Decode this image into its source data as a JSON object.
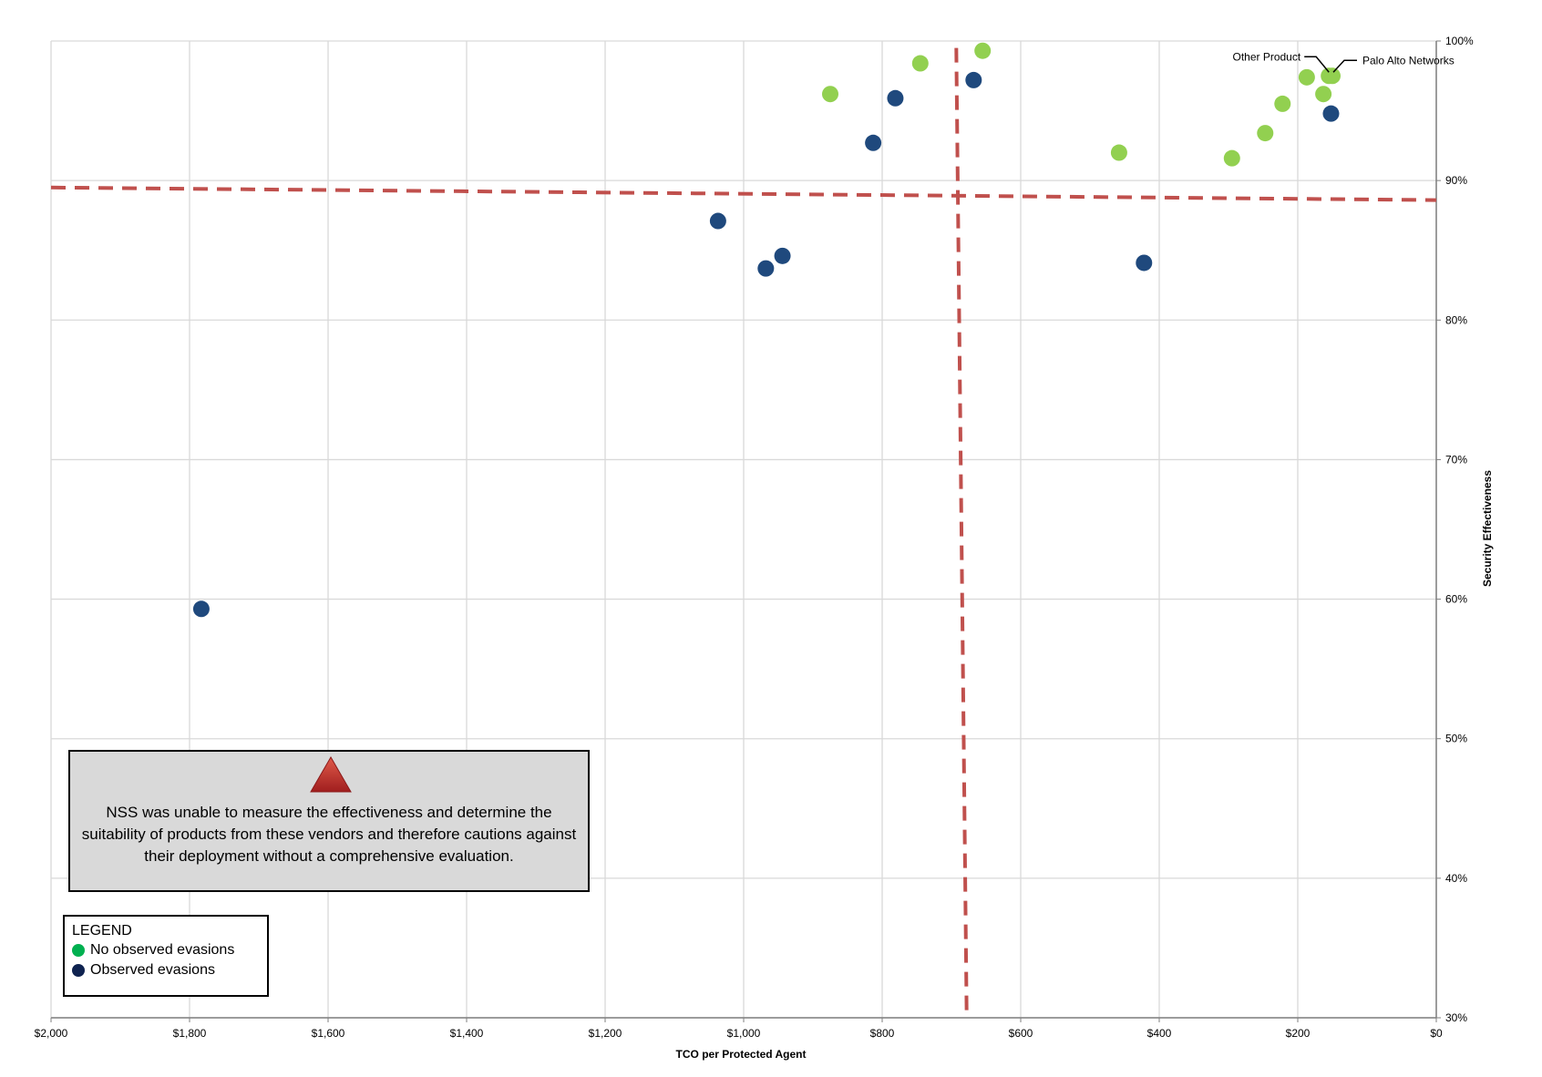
{
  "colors": {
    "no_evasions": "#92d050",
    "observed_evasions": "#1f497d",
    "legend_no_evasions": "#00b050",
    "legend_observed_evasions": "#0f2350",
    "reference_line": "#c0504d",
    "grid": "#d9d9d9",
    "warning_fill": "#d9d9d9",
    "warning_triangle": "#c0392b"
  },
  "chart_data": {
    "type": "scatter",
    "xlabel": "TCO per Protected Agent",
    "ylabel": "Security Effectiveness",
    "xlim": [
      2000,
      0
    ],
    "x_reversed": true,
    "ylim": [
      30,
      100
    ],
    "x_ticks": [
      2000,
      1800,
      1600,
      1400,
      1200,
      1000,
      800,
      600,
      400,
      200,
      0
    ],
    "x_tick_labels": [
      "$2,000",
      "$1,800",
      "$1,600",
      "$1,400",
      "$1,200",
      "$1,000",
      "$800",
      "$600",
      "$400",
      "$200",
      "$0"
    ],
    "y_ticks": [
      30,
      40,
      50,
      60,
      70,
      80,
      90,
      100
    ],
    "y_tick_labels": [
      "30%",
      "40%",
      "50%",
      "60%",
      "70%",
      "80%",
      "90%",
      "100%"
    ],
    "grid": true,
    "y_axis_position": "right",
    "series": [
      {
        "name": "No observed evasions",
        "points": [
          {
            "x": 875,
            "y": 96.2
          },
          {
            "x": 745,
            "y": 98.4
          },
          {
            "x": 655,
            "y": 99.3
          },
          {
            "x": 458,
            "y": 92.0
          },
          {
            "x": 295,
            "y": 91.6
          },
          {
            "x": 247,
            "y": 93.4
          },
          {
            "x": 222,
            "y": 95.5
          },
          {
            "x": 187,
            "y": 97.4
          },
          {
            "x": 163,
            "y": 96.2
          },
          {
            "x": 155,
            "y": 97.5
          },
          {
            "x": 150,
            "y": 97.5
          }
        ]
      },
      {
        "name": "Observed evasions",
        "points": [
          {
            "x": 1783,
            "y": 59.3
          },
          {
            "x": 1037,
            "y": 87.1
          },
          {
            "x": 968,
            "y": 83.7
          },
          {
            "x": 944,
            "y": 84.6
          },
          {
            "x": 813,
            "y": 92.7
          },
          {
            "x": 781,
            "y": 95.9
          },
          {
            "x": 668,
            "y": 97.2
          },
          {
            "x": 422,
            "y": 84.1
          },
          {
            "x": 152,
            "y": 94.8
          }
        ]
      }
    ],
    "reference_lines": [
      {
        "orientation": "horizontal",
        "from": {
          "x": 2000,
          "y": 89.5
        },
        "to": {
          "x": 0,
          "y": 88.6
        }
      },
      {
        "orientation": "vertical",
        "from": {
          "x": 693,
          "y": 99.5
        },
        "to": {
          "x": 678,
          "y": 30
        }
      }
    ],
    "annotations": [
      {
        "text": "Other Product",
        "point": {
          "x": 155,
          "y": 97.5
        }
      },
      {
        "text": "Palo Alto Networks",
        "point": {
          "x": 150,
          "y": 97.5
        }
      }
    ]
  },
  "warning": {
    "text": "NSS was unable to measure the effectiveness and determine the suitability of products from these vendors and therefore cautions against their deployment without a comprehensive evaluation."
  },
  "legend": {
    "title": "LEGEND",
    "items": [
      "No observed evasions",
      "Observed evasions"
    ]
  }
}
